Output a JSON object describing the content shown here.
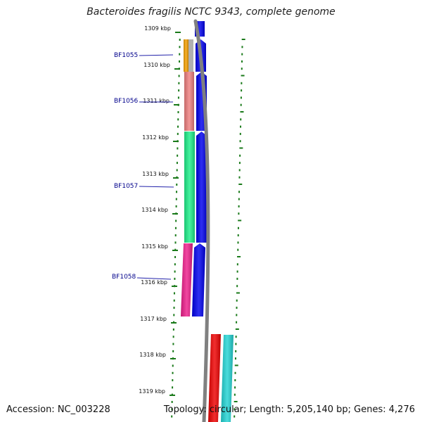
{
  "title": "Bacteroides fragilis NCTC 9343, complete genome",
  "accession": "Accession: NC_003228",
  "topology": "Topology: circular; Length: 5,205,140 bp; Genes: 4,276",
  "colors": {
    "strand": "#0000ee",
    "backbone": "#808080",
    "ticks": "#1a7a1a",
    "label": "#00008b",
    "label_line": "#2222aa"
  },
  "ticks": [
    "1309 kbp",
    "1310 kbp",
    "1311 kbp",
    "1312 kbp",
    "1313 kbp",
    "1314 kbp",
    "1315 kbp",
    "1316 kbp",
    "1317 kbp",
    "1318 kbp",
    "1319 kbp"
  ],
  "genes": [
    {
      "label": "BF1055",
      "color": "#f5a000"
    },
    {
      "label": "BF1056",
      "color": "#f08080"
    },
    {
      "label": "BF1057",
      "color": "#1ef08a"
    },
    {
      "label": "BF1058",
      "color": "#ee1e8c"
    }
  ],
  "extra_features": [
    {
      "color": "#ee0000"
    },
    {
      "color": "#22d4d4"
    }
  ]
}
